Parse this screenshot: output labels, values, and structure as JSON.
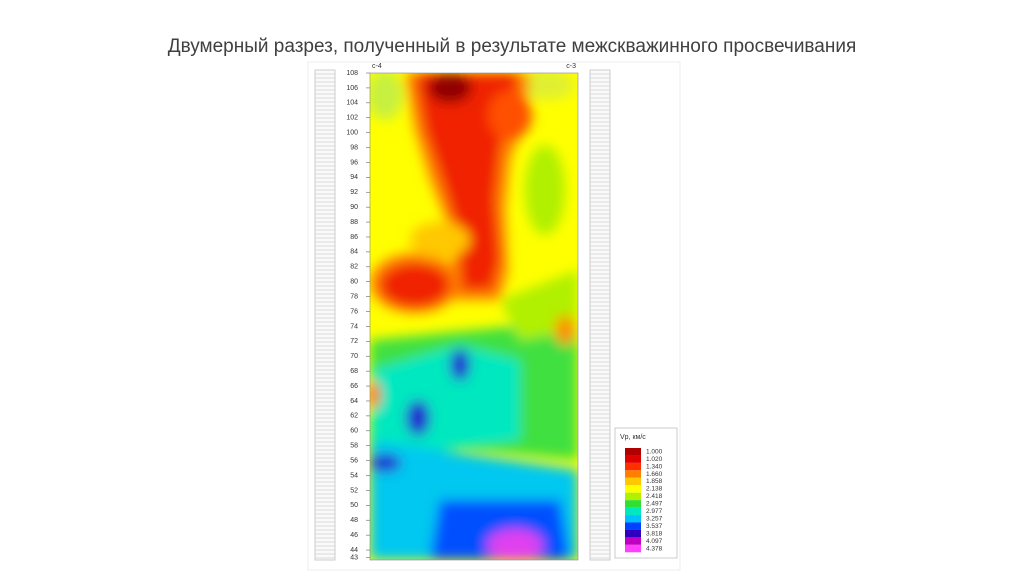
{
  "header": {
    "title": "Двумерный разрез, полученный в результате межскважинного просвечивания"
  },
  "section": {
    "left_well": "с-4",
    "right_well": "с-3",
    "depth_ticks": [
      108,
      106,
      104,
      102,
      100,
      98,
      96,
      94,
      92,
      90,
      88,
      86,
      84,
      82,
      80,
      78,
      76,
      74,
      72,
      70,
      68,
      66,
      64,
      62,
      60,
      58,
      56,
      54,
      52,
      50,
      48,
      46,
      44,
      43
    ],
    "depth_range": [
      108,
      43
    ]
  },
  "legend": {
    "title": "Vp, км/с",
    "entries": [
      {
        "label": "1.000",
        "color": "#b00000"
      },
      {
        "label": "1.020",
        "color": "#e00000"
      },
      {
        "label": "1.340",
        "color": "#ff3000"
      },
      {
        "label": "1.660",
        "color": "#ff8000"
      },
      {
        "label": "1.858",
        "color": "#ffc800"
      },
      {
        "label": "2.138",
        "color": "#ffff00"
      },
      {
        "label": "2.418",
        "color": "#b0f000"
      },
      {
        "label": "2.497",
        "color": "#30e030"
      },
      {
        "label": "2.977",
        "color": "#00e8c0"
      },
      {
        "label": "3.257",
        "color": "#00c0ff"
      },
      {
        "label": "3.537",
        "color": "#0040ff"
      },
      {
        "label": "3.818",
        "color": "#3000c0"
      },
      {
        "label": "4.097",
        "color": "#c000c0"
      },
      {
        "label": "4.378",
        "color": "#ff40ff"
      }
    ]
  }
}
